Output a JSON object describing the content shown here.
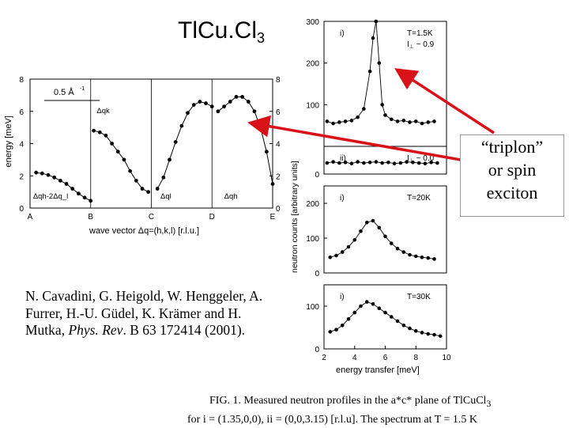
{
  "title": {
    "main": "TlCu.Cl",
    "sub": "3"
  },
  "citation": {
    "line1": "N. Cavadini, G. Heigold, W. Henggeler, A.",
    "line2": "Furrer, H.-U. Güdel, K. Krämer and  H.",
    "line3_authors": "Mutka, ",
    "journal": "Phys. Rev",
    "line3_rest": ". B 63 172414 (2001)."
  },
  "callout": {
    "line1": "“triplon”",
    "line2": "or spin",
    "line3": "exciton"
  },
  "caption": {
    "line1": "FIG. 1.  Measured neutron profiles in the a*c* plane of TlCuCl",
    "line1_sub": "3",
    "line2": "for i = (1.35,0,0),  ii = (0,0,3.15)  [r.l.u]. The spectrum at T = 1.5 K"
  },
  "colors": {
    "arrow": "#d9121a",
    "ink": "#000000"
  },
  "chart_data": [
    {
      "type": "scatter",
      "title": "",
      "xlabel": "wave vector  Δq=(h,k,l) [r.l.u.]",
      "ylabel": "energy [meV]",
      "xticks": [
        "A",
        "B",
        "C",
        "D",
        "E"
      ],
      "ylim": [
        0,
        8
      ],
      "yticks": [
        "0",
        "2",
        "4",
        "6",
        "8"
      ],
      "scale_label": "0.5 Å",
      "scale_label_sup": "-1",
      "annotations": [
        "Δq_k",
        "Δq_h-2Δq_l",
        "Δq_l",
        "Δq_h"
      ],
      "series": [
        {
          "x": [
            0.1,
            0.2,
            0.3,
            0.4,
            0.5,
            0.6,
            0.7,
            0.8,
            0.9,
            1.0
          ],
          "y": [
            2.2,
            2.15,
            2.05,
            1.9,
            1.7,
            1.5,
            1.2,
            0.9,
            0.65,
            0.45
          ]
        },
        {
          "x": [
            1.05,
            1.15,
            1.25,
            1.35,
            1.45,
            1.55,
            1.65,
            1.75,
            1.85,
            1.95
          ],
          "y": [
            4.8,
            4.7,
            4.5,
            4.0,
            3.5,
            3.0,
            2.3,
            1.7,
            1.2,
            1.0
          ]
        },
        {
          "x": [
            2.1,
            2.2,
            2.3,
            2.4,
            2.5,
            2.6,
            2.7,
            2.8,
            2.9,
            3.0
          ],
          "y": [
            1.2,
            1.9,
            3.0,
            4.1,
            5.1,
            5.9,
            6.4,
            6.6,
            6.5,
            6.3
          ]
        },
        {
          "x": [
            3.1,
            3.2,
            3.3,
            3.4,
            3.5,
            3.6,
            3.7,
            3.8,
            3.9,
            4.0
          ],
          "y": [
            6.0,
            6.3,
            6.6,
            6.9,
            6.9,
            6.6,
            6.0,
            5.0,
            3.5,
            1.5
          ]
        }
      ]
    },
    {
      "type": "line",
      "ylabel": "neutron counts [arbitrary units]",
      "xlabel": "energy transfer [meV]",
      "xlim": [
        2,
        10
      ],
      "xticks": [
        "2",
        "4",
        "6",
        "8",
        "10"
      ],
      "panels": [
        {
          "label": "i)",
          "temp": "T=1.5K",
          "extra": "I",
          "extra_sub": "⊥",
          "extra_val": " ~ 0.9",
          "ylim": [
            0,
            300
          ],
          "yticks": [
            "100",
            "200",
            "300"
          ],
          "x": [
            2.2,
            2.6,
            3.0,
            3.4,
            3.8,
            4.2,
            4.6,
            5.0,
            5.2,
            5.4,
            5.6,
            5.8,
            6.0,
            6.4,
            6.8,
            7.2,
            7.6,
            8.0,
            8.4,
            8.8,
            9.2
          ],
          "y": [
            60,
            55,
            58,
            60,
            62,
            70,
            90,
            180,
            260,
            300,
            200,
            100,
            75,
            65,
            60,
            62,
            58,
            60,
            55,
            58,
            60
          ]
        },
        {
          "label": "ii)",
          "extra": "I",
          "extra_sub": "⊥",
          "extra_val": " ~ 0.0",
          "ylim": [
            0,
            50
          ],
          "yticks": [
            "0"
          ],
          "x": [
            2.2,
            2.6,
            3.0,
            3.4,
            3.8,
            4.2,
            4.6,
            5.0,
            5.4,
            5.8,
            6.2,
            6.6,
            7.0,
            7.4,
            7.8,
            8.2,
            8.6,
            9.0,
            9.4
          ],
          "y": [
            20,
            22,
            20,
            21,
            19,
            22,
            20,
            21,
            22,
            20,
            21,
            19,
            20,
            22,
            21,
            20,
            19,
            21,
            20
          ]
        },
        {
          "label": "i)",
          "temp": "T=20K",
          "ylim": [
            0,
            250
          ],
          "yticks": [
            "0",
            "100",
            "200"
          ],
          "x": [
            2.4,
            2.8,
            3.2,
            3.6,
            4.0,
            4.4,
            4.8,
            5.2,
            5.6,
            6.0,
            6.4,
            6.8,
            7.2,
            7.6,
            8.0,
            8.4,
            8.8,
            9.2
          ],
          "y": [
            45,
            50,
            60,
            75,
            95,
            120,
            145,
            150,
            130,
            105,
            85,
            70,
            60,
            52,
            48,
            45,
            43,
            40
          ]
        },
        {
          "label": "i)",
          "temp": "T=30K",
          "ylim": [
            0,
            150
          ],
          "yticks": [
            "0",
            "100"
          ],
          "x": [
            2.4,
            2.8,
            3.2,
            3.6,
            4.0,
            4.4,
            4.8,
            5.2,
            5.6,
            6.0,
            6.4,
            6.8,
            7.2,
            7.6,
            8.0,
            8.4,
            8.8,
            9.2,
            9.6
          ],
          "y": [
            40,
            45,
            55,
            70,
            85,
            100,
            110,
            105,
            95,
            85,
            75,
            65,
            55,
            48,
            42,
            38,
            35,
            33,
            30
          ]
        }
      ]
    }
  ]
}
